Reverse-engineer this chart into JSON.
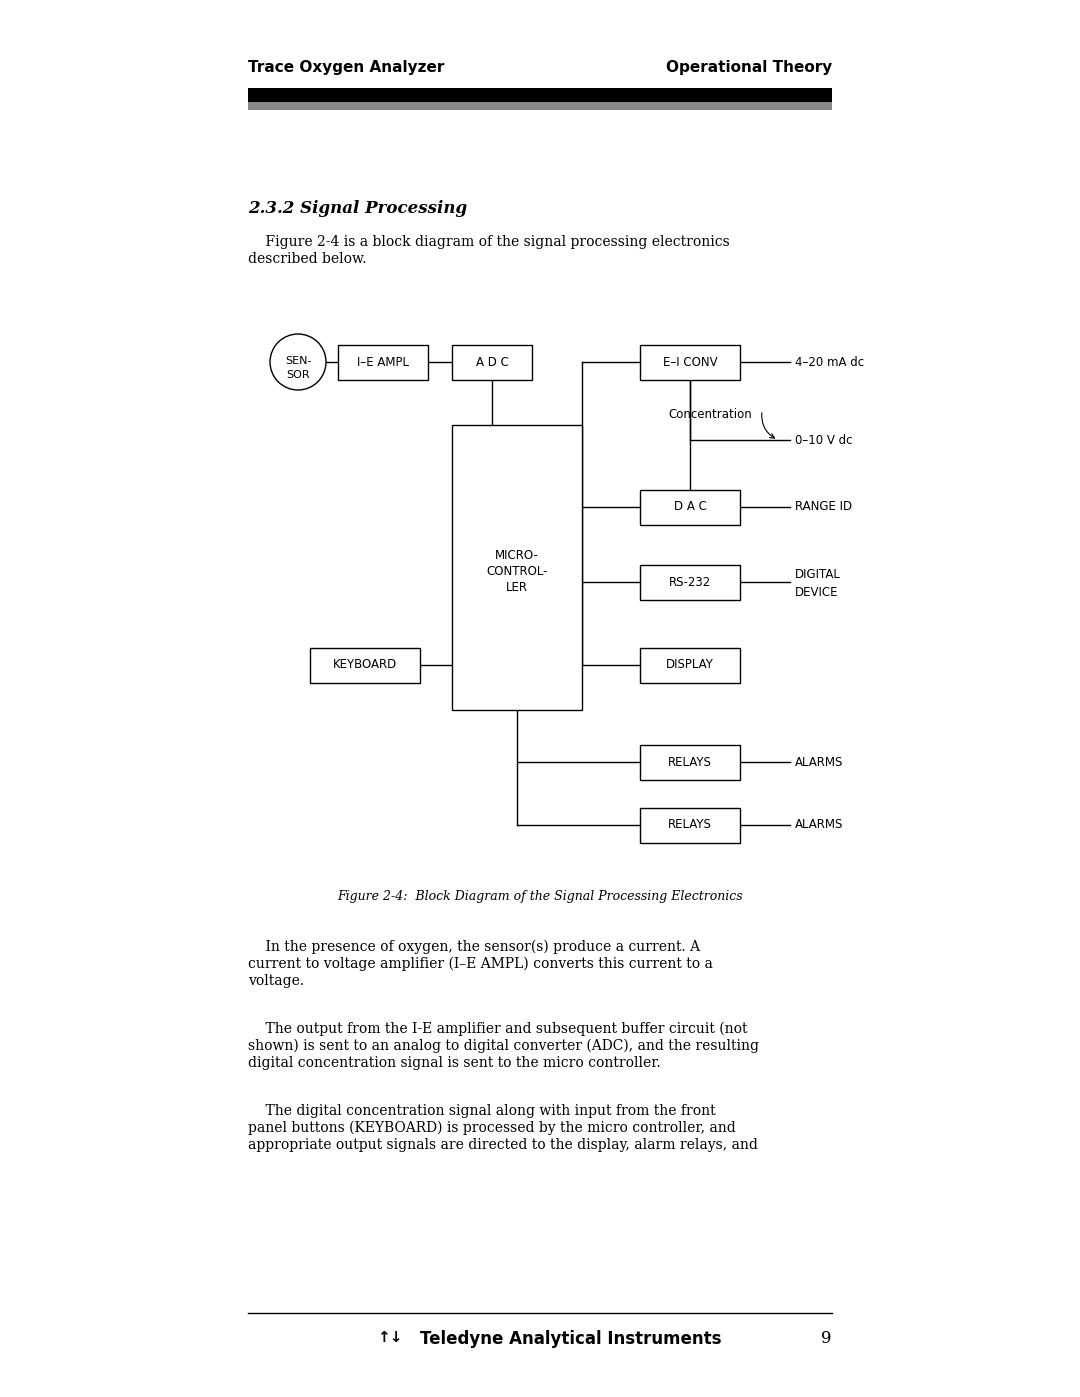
{
  "page_title_left": "Trace Oxygen Analyzer",
  "page_title_right": "Operational Theory",
  "section_title": "2.3.2 Signal Processing",
  "intro_text_line1": "    Figure 2-4 is a block diagram of the signal processing electronics",
  "intro_text_line2": "described below.",
  "figure_caption": "Figure 2-4:  Block Diagram of the Signal Processing Electronics",
  "body_text1_line1": "    In the presence of oxygen, the sensor(s) produce a current. A",
  "body_text1_line2": "current to voltage amplifier (I–E AMPL) converts this current to a",
  "body_text1_line3": "voltage.",
  "body_text2_line1": "    The output from the I-E amplifier and subsequent buffer circuit (not",
  "body_text2_line2": "shown) is sent to an analog to digital converter (ADC), and the resulting",
  "body_text2_line3": "digital concentration signal is sent to the micro controller.",
  "body_text3_line1": "    The digital concentration signal along with input from the front",
  "body_text3_line2": "panel buttons (KEYBOARD) is processed by the micro controller, and",
  "body_text3_line3": "appropriate output signals are directed to the display, alarm relays, and",
  "footer_logo": "↑↓",
  "footer_company": "Teledyne Analytical Instruments",
  "page_number": "9",
  "bg_color": "#ffffff",
  "text_color": "#000000",
  "header_bar_color": "#000000",
  "header_shadow_color": "#888888"
}
